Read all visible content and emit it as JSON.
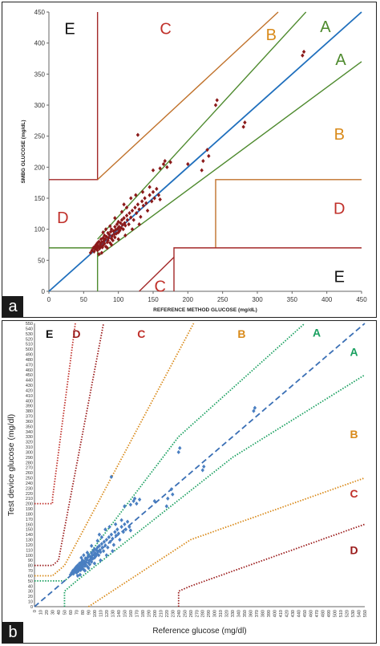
{
  "colors": {
    "a_line_A": "#4e8a2e",
    "a_line_B": "#c0712a",
    "a_line_CDE": "#a32828",
    "a_identity": "#1f6fbd",
    "a_points": "#8b1a1a",
    "b_A": "#1aa060",
    "b_B": "#d98a1a",
    "b_C": "#c0302a",
    "b_D": "#9a1a1a",
    "b_points": "#4a7fc1",
    "b_identity": "#3a6fb5"
  },
  "chart_data": [
    {
      "type": "scatter",
      "panel_label": "a",
      "xlabel": "REFERENCE  METHOD  GLUCOSE (mg/dL)",
      "ylabel": "SMBG  GLUCOSE (mg/dL)",
      "xlim": [
        0,
        450
      ],
      "ylim": [
        0,
        450
      ],
      "xticks": [
        "0",
        "50",
        "100",
        "150",
        "200",
        "250",
        "300",
        "350",
        "400",
        "450"
      ],
      "yticks": [
        "0",
        "50",
        "100",
        "150",
        "200",
        "250",
        "300",
        "350",
        "400",
        "450"
      ],
      "zone_labels": [
        {
          "text": "E",
          "x": 30,
          "y": 425,
          "color": "#111111"
        },
        {
          "text": "C",
          "x": 168,
          "y": 425,
          "color": "#c0302a"
        },
        {
          "text": "B",
          "x": 320,
          "y": 415,
          "color": "#d98a1a"
        },
        {
          "text": "A",
          "x": 398,
          "y": 428,
          "color": "#4e8a2e"
        },
        {
          "text": "A",
          "x": 420,
          "y": 375,
          "color": "#4e8a2e"
        },
        {
          "text": "B",
          "x": 418,
          "y": 255,
          "color": "#d98a1a"
        },
        {
          "text": "D",
          "x": 20,
          "y": 120,
          "color": "#c0302a"
        },
        {
          "text": "D",
          "x": 418,
          "y": 135,
          "color": "#c0302a"
        },
        {
          "text": "C",
          "x": 160,
          "y": 10,
          "color": "#c0302a"
        },
        {
          "text": "E",
          "x": 418,
          "y": 25,
          "color": "#111111"
        }
      ],
      "points": [
        [
          60,
          62
        ],
        [
          62,
          66
        ],
        [
          64,
          70
        ],
        [
          65,
          64
        ],
        [
          66,
          72
        ],
        [
          67,
          68
        ],
        [
          68,
          75
        ],
        [
          69,
          70
        ],
        [
          70,
          66
        ],
        [
          70,
          78
        ],
        [
          71,
          73
        ],
        [
          72,
          80
        ],
        [
          73,
          69
        ],
        [
          74,
          76
        ],
        [
          75,
          72
        ],
        [
          75,
          84
        ],
        [
          76,
          79
        ],
        [
          77,
          71
        ],
        [
          78,
          86
        ],
        [
          78,
          74
        ],
        [
          79,
          81
        ],
        [
          80,
          77
        ],
        [
          80,
          90
        ],
        [
          81,
          84
        ],
        [
          82,
          72
        ],
        [
          83,
          88
        ],
        [
          84,
          79
        ],
        [
          85,
          94
        ],
        [
          85,
          82
        ],
        [
          86,
          86
        ],
        [
          87,
          91
        ],
        [
          88,
          78
        ],
        [
          89,
          96
        ],
        [
          90,
          85
        ],
        [
          90,
          100
        ],
        [
          91,
          89
        ],
        [
          92,
          82
        ],
        [
          93,
          97
        ],
        [
          94,
          92
        ],
        [
          95,
          104
        ],
        [
          95,
          87
        ],
        [
          96,
          99
        ],
        [
          97,
          93
        ],
        [
          98,
          108
        ],
        [
          99,
          101
        ],
        [
          100,
          95
        ],
        [
          100,
          112
        ],
        [
          101,
          104
        ],
        [
          102,
          98
        ],
        [
          103,
          110
        ],
        [
          104,
          102
        ],
        [
          105,
          115
        ],
        [
          106,
          107
        ],
        [
          107,
          100
        ],
        [
          108,
          118
        ],
        [
          109,
          110
        ],
        [
          110,
          106
        ],
        [
          112,
          122
        ],
        [
          113,
          115
        ],
        [
          115,
          108
        ],
        [
          116,
          126
        ],
        [
          118,
          119
        ],
        [
          120,
          130
        ],
        [
          122,
          115
        ],
        [
          124,
          135
        ],
        [
          126,
          126
        ],
        [
          128,
          140
        ],
        [
          130,
          132
        ],
        [
          132,
          120
        ],
        [
          134,
          145
        ],
        [
          136,
          138
        ],
        [
          138,
          150
        ],
        [
          140,
          142
        ],
        [
          142,
          130
        ],
        [
          145,
          155
        ],
        [
          148,
          145
        ],
        [
          150,
          160
        ],
        [
          152,
          150
        ],
        [
          155,
          165
        ],
        [
          158,
          155
        ],
        [
          160,
          148
        ],
        [
          95,
          118
        ],
        [
          88,
          105
        ],
        [
          105,
          128
        ],
        [
          112,
          135
        ],
        [
          78,
          95
        ],
        [
          82,
          100
        ],
        [
          128,
          252
        ],
        [
          150,
          195
        ],
        [
          160,
          198
        ],
        [
          165,
          205
        ],
        [
          167,
          210
        ],
        [
          170,
          200
        ],
        [
          175,
          208
        ],
        [
          200,
          205
        ],
        [
          220,
          195
        ],
        [
          222,
          210
        ],
        [
          228,
          228
        ],
        [
          230,
          218
        ],
        [
          240,
          300
        ],
        [
          242,
          308
        ],
        [
          280,
          265
        ],
        [
          282,
          272
        ],
        [
          365,
          380
        ],
        [
          367,
          386
        ],
        [
          108,
          140
        ],
        [
          118,
          150
        ],
        [
          125,
          155
        ],
        [
          135,
          160
        ],
        [
          145,
          168
        ],
        [
          72,
          60
        ],
        [
          76,
          62
        ],
        [
          84,
          70
        ],
        [
          90,
          75
        ],
        [
          100,
          84
        ],
        [
          110,
          90
        ],
        [
          120,
          100
        ],
        [
          130,
          108
        ]
      ]
    },
    {
      "type": "scatter",
      "panel_label": "b",
      "xlabel": "Reference glucose (mg/dl)",
      "ylabel": "Test device glucose (mg/dl)",
      "xlim": [
        0,
        550
      ],
      "ylim": [
        0,
        550
      ],
      "xticks": [
        "0",
        "10",
        "20",
        "30",
        "40",
        "50",
        "60",
        "70",
        "80",
        "90",
        "100",
        "110",
        "120",
        "130",
        "140",
        "150",
        "160",
        "170",
        "180",
        "190",
        "200",
        "210",
        "220",
        "230",
        "240",
        "250",
        "260",
        "270",
        "280",
        "290",
        "300",
        "310",
        "320",
        "330",
        "340",
        "350",
        "360",
        "370",
        "380",
        "390",
        "400",
        "410",
        "420",
        "430",
        "440",
        "450",
        "460",
        "470",
        "480",
        "490",
        "500",
        "510",
        "520",
        "530",
        "540",
        "550"
      ],
      "yticks": [
        "0",
        "10",
        "20",
        "30",
        "40",
        "50",
        "60",
        "70",
        "80",
        "90",
        "100",
        "110",
        "120",
        "130",
        "140",
        "150",
        "160",
        "170",
        "180",
        "190",
        "200",
        "210",
        "220",
        "230",
        "240",
        "250",
        "260",
        "270",
        "280",
        "290",
        "300",
        "310",
        "320",
        "330",
        "340",
        "350",
        "360",
        "370",
        "380",
        "390",
        "400",
        "410",
        "420",
        "430",
        "440",
        "450",
        "460",
        "470",
        "480",
        "490",
        "500",
        "510",
        "520",
        "530",
        "540",
        "550"
      ],
      "zone_labels": [
        {
          "text": "E",
          "x": 25,
          "y": 530,
          "color": "#111111"
        },
        {
          "text": "D",
          "x": 70,
          "y": 530,
          "color": "#9a1a1a"
        },
        {
          "text": "C",
          "x": 178,
          "y": 530,
          "color": "#c0302a"
        },
        {
          "text": "B",
          "x": 345,
          "y": 530,
          "color": "#d98a1a"
        },
        {
          "text": "A",
          "x": 470,
          "y": 532,
          "color": "#1aa060"
        },
        {
          "text": "A",
          "x": 532,
          "y": 495,
          "color": "#1aa060"
        },
        {
          "text": "B",
          "x": 532,
          "y": 335,
          "color": "#d98a1a"
        },
        {
          "text": "C",
          "x": 532,
          "y": 220,
          "color": "#c0302a"
        },
        {
          "text": "D",
          "x": 532,
          "y": 110,
          "color": "#9a1a1a"
        }
      ],
      "points": [
        [
          60,
          62
        ],
        [
          62,
          66
        ],
        [
          64,
          70
        ],
        [
          65,
          64
        ],
        [
          66,
          72
        ],
        [
          67,
          68
        ],
        [
          68,
          75
        ],
        [
          69,
          70
        ],
        [
          70,
          66
        ],
        [
          70,
          78
        ],
        [
          71,
          73
        ],
        [
          72,
          80
        ],
        [
          73,
          69
        ],
        [
          74,
          76
        ],
        [
          75,
          72
        ],
        [
          75,
          84
        ],
        [
          76,
          79
        ],
        [
          77,
          71
        ],
        [
          78,
          86
        ],
        [
          78,
          74
        ],
        [
          79,
          81
        ],
        [
          80,
          77
        ],
        [
          80,
          90
        ],
        [
          81,
          84
        ],
        [
          82,
          72
        ],
        [
          83,
          88
        ],
        [
          84,
          79
        ],
        [
          85,
          94
        ],
        [
          85,
          82
        ],
        [
          86,
          86
        ],
        [
          87,
          91
        ],
        [
          88,
          78
        ],
        [
          89,
          96
        ],
        [
          90,
          85
        ],
        [
          90,
          100
        ],
        [
          91,
          89
        ],
        [
          92,
          82
        ],
        [
          93,
          97
        ],
        [
          94,
          92
        ],
        [
          95,
          104
        ],
        [
          95,
          87
        ],
        [
          96,
          99
        ],
        [
          97,
          93
        ],
        [
          98,
          108
        ],
        [
          99,
          101
        ],
        [
          100,
          95
        ],
        [
          100,
          112
        ],
        [
          101,
          104
        ],
        [
          102,
          98
        ],
        [
          103,
          110
        ],
        [
          104,
          102
        ],
        [
          105,
          115
        ],
        [
          106,
          107
        ],
        [
          107,
          100
        ],
        [
          108,
          118
        ],
        [
          109,
          110
        ],
        [
          110,
          106
        ],
        [
          112,
          122
        ],
        [
          113,
          115
        ],
        [
          115,
          108
        ],
        [
          116,
          126
        ],
        [
          118,
          119
        ],
        [
          120,
          130
        ],
        [
          122,
          115
        ],
        [
          124,
          135
        ],
        [
          126,
          126
        ],
        [
          128,
          140
        ],
        [
          130,
          132
        ],
        [
          132,
          120
        ],
        [
          134,
          145
        ],
        [
          136,
          138
        ],
        [
          138,
          150
        ],
        [
          140,
          142
        ],
        [
          142,
          130
        ],
        [
          145,
          155
        ],
        [
          148,
          145
        ],
        [
          150,
          160
        ],
        [
          152,
          150
        ],
        [
          155,
          165
        ],
        [
          158,
          155
        ],
        [
          160,
          148
        ],
        [
          95,
          118
        ],
        [
          88,
          105
        ],
        [
          105,
          128
        ],
        [
          112,
          135
        ],
        [
          78,
          95
        ],
        [
          82,
          100
        ],
        [
          128,
          252
        ],
        [
          150,
          195
        ],
        [
          160,
          198
        ],
        [
          165,
          205
        ],
        [
          167,
          210
        ],
        [
          170,
          200
        ],
        [
          175,
          208
        ],
        [
          200,
          205
        ],
        [
          220,
          195
        ],
        [
          222,
          210
        ],
        [
          228,
          228
        ],
        [
          230,
          218
        ],
        [
          240,
          300
        ],
        [
          242,
          308
        ],
        [
          280,
          265
        ],
        [
          282,
          272
        ],
        [
          365,
          380
        ],
        [
          367,
          386
        ],
        [
          108,
          140
        ],
        [
          118,
          150
        ],
        [
          125,
          155
        ],
        [
          135,
          160
        ],
        [
          145,
          168
        ],
        [
          72,
          60
        ],
        [
          76,
          62
        ],
        [
          84,
          70
        ],
        [
          90,
          75
        ],
        [
          100,
          84
        ],
        [
          110,
          90
        ],
        [
          120,
          100
        ],
        [
          130,
          108
        ]
      ]
    }
  ]
}
